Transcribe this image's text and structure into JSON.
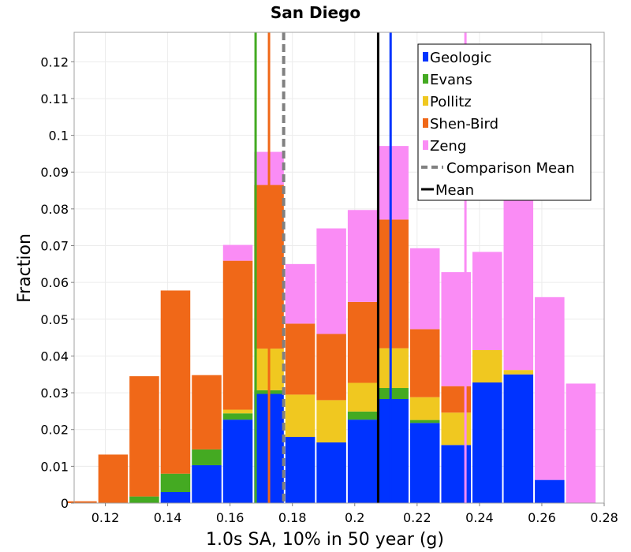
{
  "chart_data": {
    "type": "bar",
    "title": "San Diego",
    "xlabel": "1.0s SA, 10% in 50 year (g)",
    "ylabel": "Fraction",
    "xlim": [
      0.11,
      0.28
    ],
    "ylim": [
      0,
      0.128
    ],
    "x_ticks": [
      "0.12",
      "0.14",
      "0.16",
      "0.18",
      "0.2",
      "0.22",
      "0.24",
      "0.26",
      "0.28"
    ],
    "y_ticks": [
      "0",
      "0.01",
      "0.02",
      "0.03",
      "0.04",
      "0.05",
      "0.06",
      "0.07",
      "0.08",
      "0.09",
      "0.1",
      "0.11",
      "0.12"
    ],
    "x_tick_values": [
      0.12,
      0.14,
      0.16,
      0.18,
      0.2,
      0.22,
      0.24,
      0.26,
      0.28
    ],
    "y_tick_values": [
      0,
      0.01,
      0.02,
      0.03,
      0.04,
      0.05,
      0.06,
      0.07,
      0.08,
      0.09,
      0.1,
      0.11,
      0.12
    ],
    "bin_centers": [
      0.1125,
      0.1225,
      0.1325,
      0.1425,
      0.1525,
      0.1625,
      0.1725,
      0.1825,
      0.1925,
      0.2025,
      0.2125,
      0.2225,
      0.2325,
      0.2425,
      0.2525,
      0.2625,
      0.2725
    ],
    "bin_width": 0.01,
    "series": [
      {
        "name": "Geologic",
        "color": "#0033ff",
        "values": [
          0,
          0,
          0,
          0.003,
          0.0103,
          0.0227,
          0.0297,
          0.018,
          0.0165,
          0.0227,
          0.0283,
          0.0218,
          0.0158,
          0.0328,
          0.035,
          0.0063,
          0
        ]
      },
      {
        "name": "Evans",
        "color": "#44aa22",
        "values": [
          0,
          0,
          0.0018,
          0.005,
          0.0043,
          0.0017,
          0.001,
          0,
          0,
          0.0022,
          0.003,
          0.0008,
          0,
          0,
          0,
          0,
          0
        ]
      },
      {
        "name": "Pollitz",
        "color": "#f0c820",
        "values": [
          0,
          0,
          0,
          0,
          0,
          0.001,
          0.0113,
          0.0115,
          0.0115,
          0.0078,
          0.0108,
          0.0062,
          0.0088,
          0.0088,
          0.0012,
          0,
          0
        ]
      },
      {
        "name": "Shen-Bird",
        "color": "#f06818",
        "values": [
          0.0005,
          0.0132,
          0.0327,
          0.0498,
          0.0202,
          0.0405,
          0.0445,
          0.0193,
          0.018,
          0.022,
          0.035,
          0.0185,
          0.0072,
          0,
          0,
          0,
          0
        ]
      },
      {
        "name": "Zeng",
        "color": "#fa8cf5",
        "values": [
          0,
          0,
          0,
          0,
          0,
          0.0043,
          0.009,
          0.0162,
          0.0287,
          0.025,
          0.02,
          0.022,
          0.031,
          0.0267,
          0.0555,
          0.0497,
          0.0325
        ]
      }
    ],
    "vertical_lines": [
      {
        "name": "Geologic",
        "x": 0.2115,
        "color": "#0033ff",
        "style": "solid"
      },
      {
        "name": "Evans",
        "x": 0.1682,
        "color": "#44aa22",
        "style": "solid"
      },
      {
        "name": "Shen-Bird",
        "x": 0.1725,
        "color": "#f06818",
        "style": "solid"
      },
      {
        "name": "Zeng",
        "x": 0.2355,
        "color": "#fa8cf5",
        "style": "solid"
      },
      {
        "name": "Comparison Mean",
        "x": 0.1772,
        "color": "#808080",
        "style": "dashed"
      },
      {
        "name": "Mean",
        "x": 0.2075,
        "color": "#000000",
        "style": "solid"
      }
    ],
    "legend": {
      "position": "top-right",
      "entries": [
        {
          "label": "Geologic",
          "color": "#0033ff",
          "kind": "box"
        },
        {
          "label": "Evans",
          "color": "#44aa22",
          "kind": "box"
        },
        {
          "label": "Pollitz",
          "color": "#f0c820",
          "kind": "box"
        },
        {
          "label": "Shen-Bird",
          "color": "#f06818",
          "kind": "box"
        },
        {
          "label": "Zeng",
          "color": "#fa8cf5",
          "kind": "box"
        },
        {
          "label": "Comparison Mean",
          "color": "#808080",
          "kind": "dashed-line"
        },
        {
          "label": "Mean",
          "color": "#000000",
          "kind": "line"
        }
      ]
    },
    "grid": true
  }
}
